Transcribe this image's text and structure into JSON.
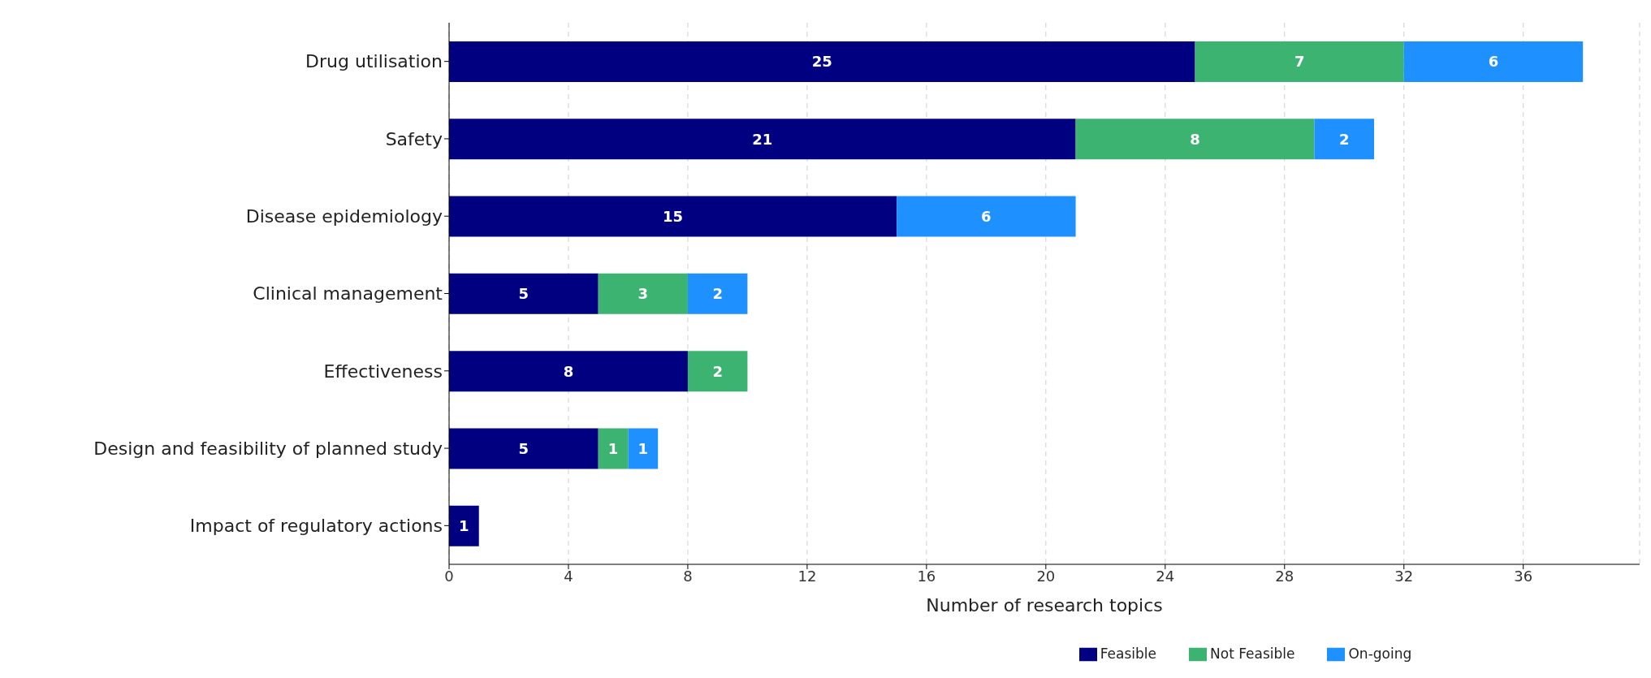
{
  "chart_data": {
    "type": "bar",
    "orientation": "horizontal",
    "stacked": true,
    "categories": [
      "Drug utilisation",
      "Safety",
      "Disease epidemiology",
      "Clinical management",
      "Effectiveness",
      "Design and feasibility of planned study",
      "Impact of regulatory actions"
    ],
    "series": [
      {
        "name": "Feasible",
        "color": "#000080",
        "values": [
          25,
          21,
          15,
          5,
          8,
          5,
          1
        ]
      },
      {
        "name": "Not Feasible",
        "color": "#3cb371",
        "values": [
          7,
          8,
          null,
          3,
          2,
          1,
          null
        ]
      },
      {
        "name": "On-going",
        "color": "#1e90ff",
        "values": [
          6,
          2,
          6,
          2,
          null,
          1,
          null
        ]
      }
    ],
    "xlabel": "Number of research topics",
    "xlim": [
      0,
      39.9
    ],
    "xticks": [
      0,
      4,
      8,
      12,
      16,
      20,
      24,
      28,
      32,
      36
    ],
    "grid": "x",
    "legend": "bottom",
    "data_labels": true
  }
}
